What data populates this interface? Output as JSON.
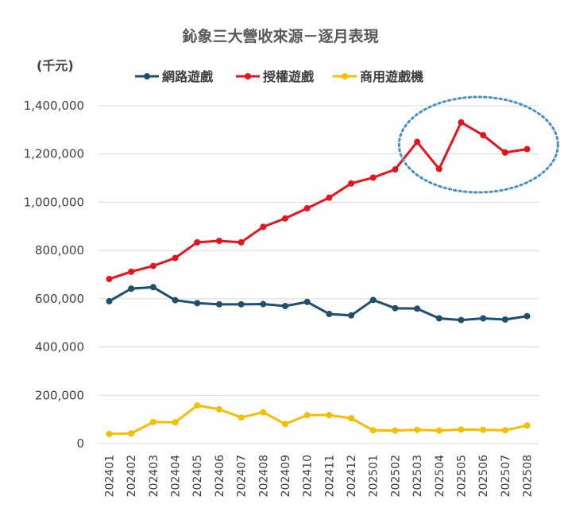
{
  "chart_data": {
    "type": "line",
    "title": "鈊象三大營收來源－逐月表現",
    "unit_label": "(千元)",
    "ylim": [
      0,
      1400000
    ],
    "yticks": [
      0,
      200000,
      400000,
      600000,
      800000,
      1000000,
      1200000,
      1400000
    ],
    "ytick_labels": [
      "0",
      "200,000",
      "400,000",
      "600,000",
      "800,000",
      "1,000,000",
      "1,200,000",
      "1,400,000"
    ],
    "grid": true,
    "legend_position": "top",
    "categories": [
      "202401",
      "202402",
      "202403",
      "202404",
      "202405",
      "202406",
      "202407",
      "202408",
      "202409",
      "202410",
      "202411",
      "202412",
      "202501",
      "202502",
      "202503",
      "202504",
      "202505",
      "202506",
      "202507",
      "202508"
    ],
    "series": [
      {
        "name": "網路遊戲",
        "color": "#1f4e6e",
        "values": [
          590000,
          642000,
          648000,
          594000,
          582000,
          577000,
          577000,
          578000,
          570000,
          587000,
          537000,
          531000,
          595000,
          561000,
          559000,
          519000,
          512000,
          519000,
          514000,
          528000
        ]
      },
      {
        "name": "授權遊戲",
        "color": "#e8141c",
        "values": [
          682000,
          712000,
          736000,
          769000,
          834000,
          840000,
          834000,
          898000,
          933000,
          975000,
          1019000,
          1078000,
          1102000,
          1136000,
          1250000,
          1138000,
          1331000,
          1278000,
          1206000,
          1220000
        ]
      },
      {
        "name": "商用遊戲機",
        "color": "#f5be00",
        "values": [
          40000,
          42000,
          89000,
          88000,
          158000,
          142000,
          108000,
          130000,
          81000,
          118000,
          118000,
          105000,
          55000,
          54000,
          57000,
          54000,
          58000,
          57000,
          55000,
          75000
        ]
      }
    ],
    "annotation": {
      "shape": "dashed-ellipse",
      "color": "#4a90c8",
      "highlight_range": [
        "202503",
        "202508"
      ]
    }
  }
}
